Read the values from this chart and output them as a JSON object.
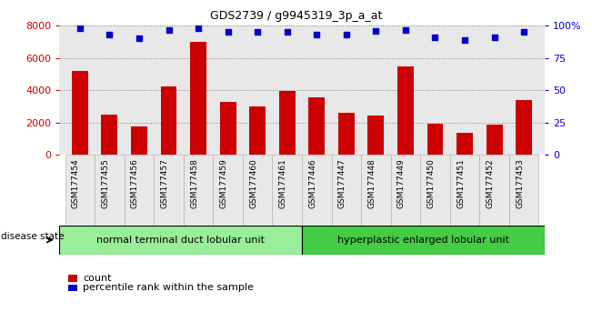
{
  "title": "GDS2739 / g9945319_3p_a_at",
  "samples": [
    "GSM177454",
    "GSM177455",
    "GSM177456",
    "GSM177457",
    "GSM177458",
    "GSM177459",
    "GSM177460",
    "GSM177461",
    "GSM177446",
    "GSM177447",
    "GSM177448",
    "GSM177449",
    "GSM177450",
    "GSM177451",
    "GSM177452",
    "GSM177453"
  ],
  "counts": [
    5200,
    2500,
    1750,
    4250,
    7000,
    3250,
    3000,
    3950,
    3550,
    2600,
    2400,
    5450,
    1900,
    1350,
    1850,
    3400
  ],
  "percentiles": [
    98,
    93,
    90,
    97,
    98,
    95,
    95,
    95,
    93,
    93,
    96,
    97,
    91,
    89,
    91,
    95
  ],
  "group1_label": "normal terminal duct lobular unit",
  "group2_label": "hyperplastic enlarged lobular unit",
  "group1_count": 8,
  "group2_count": 8,
  "bar_color": "#cc0000",
  "dot_color": "#0000cc",
  "group1_color": "#99ee99",
  "group2_color": "#44cc44",
  "ylim_left": [
    0,
    8000
  ],
  "ylim_right": [
    0,
    100
  ],
  "yticks_left": [
    0,
    2000,
    4000,
    6000,
    8000
  ],
  "yticks_right": [
    0,
    25,
    50,
    75,
    100
  ],
  "bg_color": "#e8e8e8",
  "legend_count_label": "count",
  "legend_pct_label": "percentile rank within the sample",
  "disease_state_label": "disease state"
}
